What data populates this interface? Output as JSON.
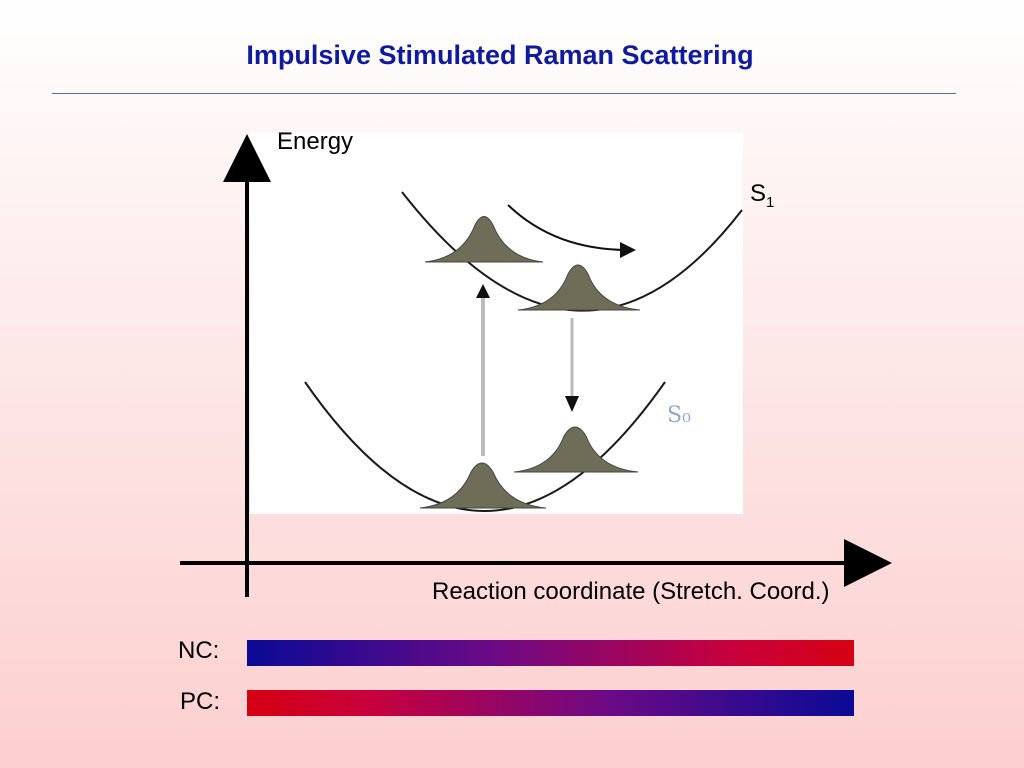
{
  "title": "Impulsive Stimulated Raman Scattering",
  "diagram": {
    "y_axis_label": "Energy",
    "x_axis_label": "Reaction coordinate (Stretch. Coord.)",
    "excited_state_label": "S",
    "excited_state_subscript": "1",
    "ground_state_label": "S₀",
    "colors": {
      "axis": "#000000",
      "wavepacket": "#6e6e58",
      "ground_state_text": "#9aa8c8",
      "title": "#0f1a9c"
    }
  },
  "bars": [
    {
      "label": "NC:",
      "gradient": "blue-to-red",
      "start_color": "#0a0a96",
      "end_color": "#d60012"
    },
    {
      "label": "PC:",
      "gradient": "red-to-blue",
      "start_color": "#d60012",
      "end_color": "#0a0a96"
    }
  ]
}
